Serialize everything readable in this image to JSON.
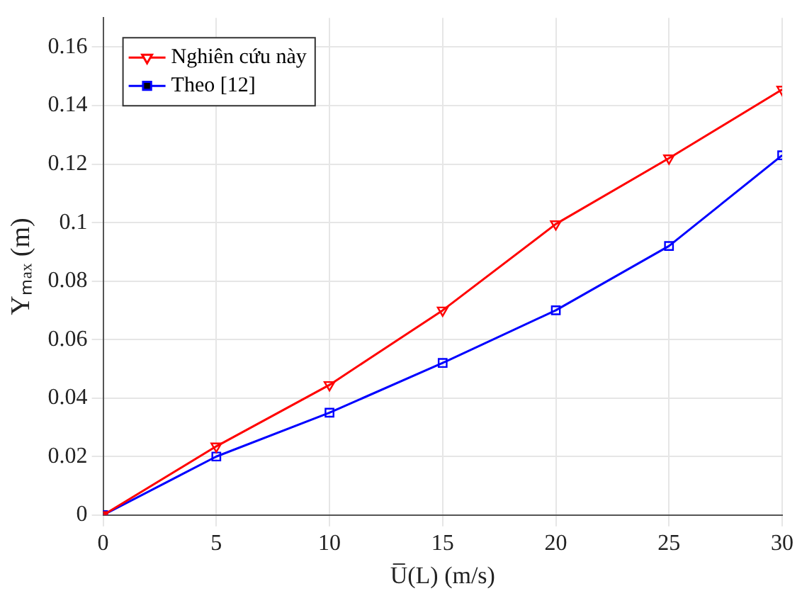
{
  "chart_data": {
    "type": "line",
    "xlabel": "U̅(L) (m/s)",
    "ylabel": "Yₘₐₓ (m)",
    "x": [
      0,
      5,
      10,
      15,
      20,
      25,
      30
    ],
    "series": [
      {
        "name": "Nghiên cứu này",
        "color": "#ff0000",
        "marker": "triangle",
        "values": [
          0,
          0.0235,
          0.0445,
          0.07,
          0.0995,
          0.122,
          0.1455
        ]
      },
      {
        "name": "Theo [12]",
        "color": "#0000ff",
        "marker": "square",
        "values": [
          0,
          0.02,
          0.035,
          0.052,
          0.07,
          0.092,
          0.123
        ]
      }
    ],
    "xlim": [
      0,
      30
    ],
    "xticks": [
      0,
      5,
      10,
      15,
      20,
      25,
      30
    ],
    "ylim": [
      0,
      0.17
    ],
    "yticks": [
      0,
      0.02,
      0.04,
      0.06,
      0.08,
      0.1,
      0.12,
      0.14,
      0.16
    ],
    "grid": true,
    "legend": "top left"
  }
}
